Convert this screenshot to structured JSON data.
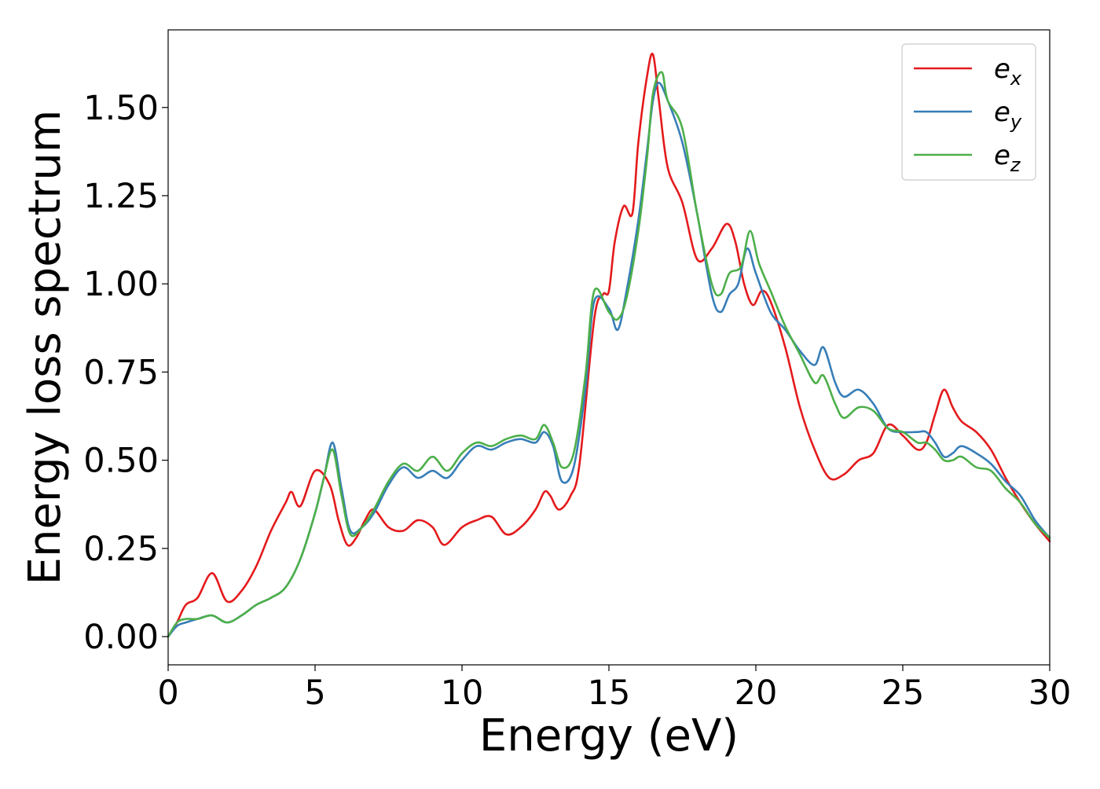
{
  "chart_data": {
    "type": "line",
    "title": "",
    "xlabel": "Energy (eV)",
    "ylabel": "Energy loss spectrum",
    "xlim": [
      0,
      30
    ],
    "ylim": [
      -0.08,
      1.72
    ],
    "xticks": [
      0,
      5,
      10,
      15,
      20,
      25,
      30
    ],
    "xtick_labels": [
      "0",
      "5",
      "10",
      "15",
      "20",
      "25",
      "30"
    ],
    "yticks": [
      0.0,
      0.25,
      0.5,
      0.75,
      1.0,
      1.25,
      1.5
    ],
    "ytick_labels": [
      "0.00",
      "0.25",
      "0.50",
      "0.75",
      "1.00",
      "1.25",
      "1.50"
    ],
    "grid": false,
    "legend_position": "top-right",
    "series": [
      {
        "name": "e_x",
        "legend_main": "e",
        "legend_sub": "x",
        "color": "#e41a1c",
        "x": [
          0,
          0.3,
          0.6,
          1.0,
          1.5,
          2.0,
          2.5,
          3.0,
          3.5,
          4.0,
          4.2,
          4.5,
          5.0,
          5.5,
          5.8,
          6.1,
          6.4,
          6.7,
          7.0,
          7.5,
          8.0,
          8.5,
          9.0,
          9.4,
          10.0,
          10.5,
          11.0,
          11.5,
          12.0,
          12.5,
          12.8,
          13.0,
          13.3,
          13.7,
          14.0,
          14.5,
          14.8,
          15.0,
          15.2,
          15.5,
          15.8,
          16.0,
          16.3,
          16.5,
          16.7,
          17.0,
          17.5,
          18.0,
          18.5,
          19.0,
          19.3,
          19.6,
          19.9,
          20.2,
          20.5,
          21.0,
          21.5,
          22.0,
          22.5,
          23.0,
          23.5,
          24.0,
          24.5,
          25.0,
          25.5,
          25.8,
          26.1,
          26.4,
          26.7,
          27.0,
          27.5,
          28.0,
          28.5,
          29.0,
          29.5,
          30.0
        ],
        "y": [
          0.0,
          0.04,
          0.09,
          0.11,
          0.18,
          0.1,
          0.13,
          0.2,
          0.3,
          0.38,
          0.41,
          0.37,
          0.47,
          0.43,
          0.33,
          0.26,
          0.28,
          0.33,
          0.36,
          0.31,
          0.3,
          0.33,
          0.31,
          0.26,
          0.31,
          0.33,
          0.34,
          0.29,
          0.31,
          0.36,
          0.41,
          0.4,
          0.36,
          0.4,
          0.49,
          0.9,
          0.97,
          0.98,
          1.12,
          1.22,
          1.2,
          1.4,
          1.59,
          1.65,
          1.52,
          1.33,
          1.23,
          1.07,
          1.1,
          1.17,
          1.12,
          1.0,
          0.94,
          0.98,
          0.95,
          0.82,
          0.65,
          0.53,
          0.45,
          0.46,
          0.5,
          0.52,
          0.6,
          0.57,
          0.53,
          0.55,
          0.63,
          0.7,
          0.65,
          0.61,
          0.58,
          0.53,
          0.45,
          0.38,
          0.32,
          0.27
        ]
      },
      {
        "name": "e_y",
        "legend_main": "e",
        "legend_sub": "y",
        "color": "#377eb8",
        "x": [
          0,
          0.3,
          0.6,
          1.0,
          1.5,
          2.0,
          2.5,
          3.0,
          3.5,
          4.0,
          4.5,
          5.0,
          5.3,
          5.6,
          5.9,
          6.2,
          6.6,
          7.0,
          7.5,
          8.0,
          8.5,
          9.0,
          9.5,
          10.0,
          10.5,
          11.0,
          11.5,
          12.0,
          12.5,
          12.8,
          13.1,
          13.4,
          13.8,
          14.2,
          14.5,
          15.0,
          15.3,
          15.6,
          16.0,
          16.3,
          16.5,
          16.7,
          17.0,
          17.5,
          18.0,
          18.5,
          18.8,
          19.1,
          19.4,
          19.7,
          20.0,
          20.5,
          21.0,
          21.5,
          22.0,
          22.3,
          22.7,
          23.0,
          23.5,
          24.0,
          24.5,
          25.0,
          25.5,
          25.8,
          26.1,
          26.4,
          26.7,
          27.0,
          27.5,
          28.0,
          28.5,
          29.0,
          29.5,
          30.0
        ],
        "y": [
          0.0,
          0.03,
          0.04,
          0.05,
          0.06,
          0.04,
          0.06,
          0.09,
          0.11,
          0.14,
          0.22,
          0.35,
          0.45,
          0.55,
          0.42,
          0.3,
          0.31,
          0.35,
          0.43,
          0.48,
          0.45,
          0.47,
          0.45,
          0.5,
          0.54,
          0.53,
          0.55,
          0.56,
          0.55,
          0.58,
          0.54,
          0.44,
          0.48,
          0.7,
          0.95,
          0.93,
          0.87,
          0.98,
          1.18,
          1.38,
          1.52,
          1.57,
          1.52,
          1.4,
          1.2,
          0.97,
          0.92,
          0.97,
          1.0,
          1.1,
          1.03,
          0.92,
          0.87,
          0.81,
          0.77,
          0.82,
          0.72,
          0.68,
          0.7,
          0.66,
          0.59,
          0.58,
          0.58,
          0.58,
          0.55,
          0.51,
          0.52,
          0.54,
          0.52,
          0.49,
          0.44,
          0.4,
          0.33,
          0.28
        ]
      },
      {
        "name": "e_z",
        "legend_main": "e",
        "legend_sub": "z",
        "color": "#4daf4a",
        "x": [
          0,
          0.3,
          0.6,
          1.0,
          1.5,
          2.0,
          2.5,
          3.0,
          3.5,
          4.0,
          4.5,
          5.0,
          5.3,
          5.6,
          5.9,
          6.2,
          6.6,
          7.0,
          7.5,
          8.0,
          8.5,
          9.0,
          9.5,
          10.0,
          10.5,
          11.0,
          11.5,
          12.0,
          12.5,
          12.8,
          13.1,
          13.4,
          13.8,
          14.2,
          14.5,
          15.0,
          15.3,
          15.6,
          16.0,
          16.3,
          16.5,
          16.8,
          17.0,
          17.5,
          18.0,
          18.5,
          18.8,
          19.1,
          19.5,
          19.8,
          20.1,
          20.5,
          21.0,
          21.5,
          22.0,
          22.3,
          22.7,
          23.0,
          23.5,
          24.0,
          24.5,
          25.0,
          25.5,
          25.8,
          26.1,
          26.4,
          26.7,
          27.0,
          27.5,
          28.0,
          28.5,
          29.0,
          29.5,
          30.0
        ],
        "y": [
          0.0,
          0.04,
          0.05,
          0.05,
          0.06,
          0.04,
          0.06,
          0.09,
          0.11,
          0.14,
          0.22,
          0.35,
          0.45,
          0.53,
          0.4,
          0.29,
          0.31,
          0.36,
          0.44,
          0.49,
          0.47,
          0.51,
          0.47,
          0.52,
          0.55,
          0.54,
          0.56,
          0.57,
          0.56,
          0.6,
          0.55,
          0.48,
          0.52,
          0.74,
          0.98,
          0.92,
          0.9,
          0.96,
          1.15,
          1.36,
          1.54,
          1.6,
          1.52,
          1.44,
          1.2,
          1.0,
          0.97,
          1.03,
          1.05,
          1.15,
          1.06,
          0.98,
          0.88,
          0.8,
          0.72,
          0.74,
          0.66,
          0.62,
          0.65,
          0.64,
          0.59,
          0.58,
          0.55,
          0.55,
          0.53,
          0.5,
          0.5,
          0.51,
          0.48,
          0.47,
          0.42,
          0.38,
          0.32,
          0.28
        ]
      }
    ]
  }
}
